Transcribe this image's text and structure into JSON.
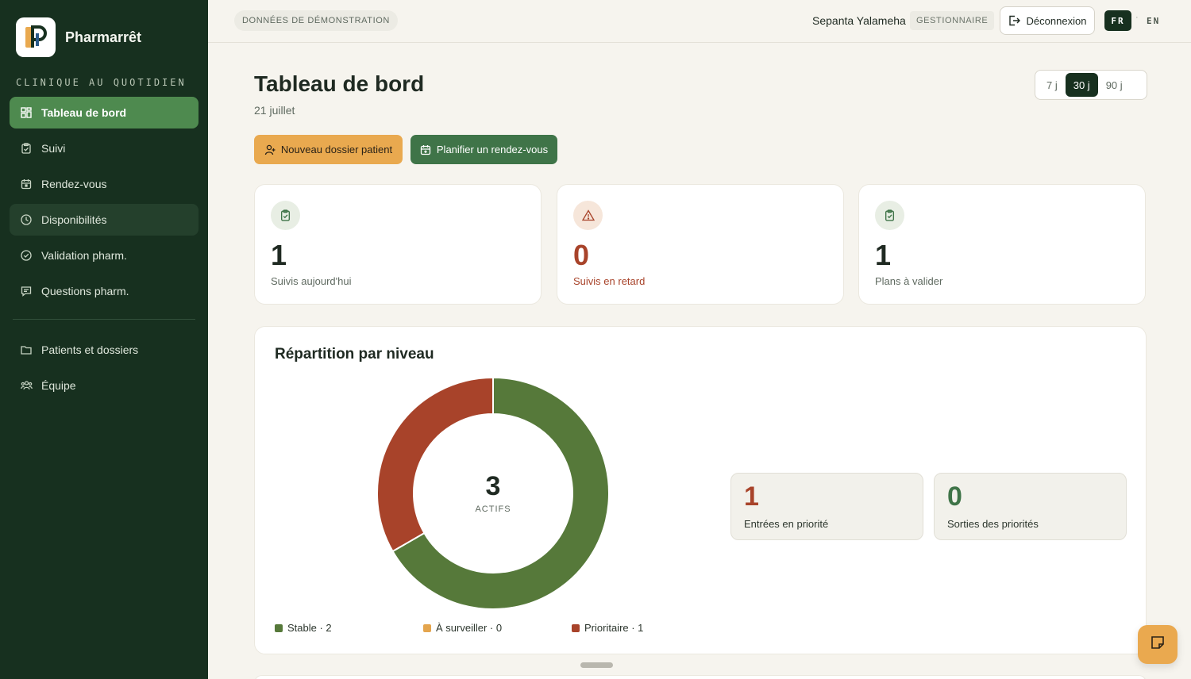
{
  "app": {
    "name": "Pharmarrêt",
    "logo_letter": "P"
  },
  "sidebar": {
    "section_label": "CLINIQUE AU QUOTIDIEN",
    "items": [
      {
        "label": "Tableau de bord",
        "icon": "dashboard-icon",
        "state": "active"
      },
      {
        "label": "Suivi",
        "icon": "clipboard-icon"
      },
      {
        "label": "Rendez-vous",
        "icon": "calendar-icon"
      },
      {
        "label": "Disponibilités",
        "icon": "clock-icon",
        "state": "hover"
      },
      {
        "label": "Validation pharm.",
        "icon": "check-circle-icon"
      },
      {
        "label": "Questions pharm.",
        "icon": "message-icon"
      }
    ],
    "secondary_items": [
      {
        "label": "Patients et dossiers",
        "icon": "folder-icon"
      },
      {
        "label": "Équipe",
        "icon": "team-icon"
      }
    ]
  },
  "topbar": {
    "demo_badge": "DONNÉES DE DÉMONSTRATION",
    "user_name": "Sepanta Yalameha",
    "role": "GESTIONNAIRE",
    "logout_label": "Déconnexion",
    "lang_active": "FR",
    "lang_separator": "·",
    "lang_other": "EN"
  },
  "header": {
    "title": "Tableau de bord",
    "date": "21 juillet",
    "ranges": [
      "7 j",
      "30 j",
      "90 j"
    ],
    "selected_range": "30 j"
  },
  "actions": {
    "new_patient": "Nouveau dossier patient",
    "schedule": "Planifier un rendez-vous"
  },
  "stats": [
    {
      "value": "1",
      "label": "Suivis aujourd'hui",
      "icon": "clipboard-check-icon",
      "tone": "green"
    },
    {
      "value": "0",
      "label": "Suivis en retard",
      "icon": "warning-icon",
      "tone": "orange"
    },
    {
      "value": "1",
      "label": "Plans à valider",
      "icon": "clipboard-check-icon",
      "tone": "green"
    }
  ],
  "distribution": {
    "title": "Répartition par niveau",
    "center_value": "3",
    "center_label": "ACTIFS",
    "legend": [
      "Stable · 2",
      "À surveiller · 0",
      "Prioritaire · 1"
    ],
    "mini_cards": [
      {
        "value": "1",
        "label": "Entrées en priorité",
        "tone": "orange"
      },
      {
        "value": "0",
        "label": "Sorties des priorités",
        "tone": "green"
      }
    ]
  },
  "chart_data": {
    "type": "pie",
    "categories": [
      "Stable",
      "À surveiller",
      "Prioritaire"
    ],
    "values": [
      2,
      0,
      1
    ],
    "colors": [
      "#56793a",
      "#e4a54e",
      "#a8432a"
    ],
    "title": "Répartition par niveau"
  },
  "colors": {
    "sidebar_bg": "#17301f",
    "accent_green": "#3f7448",
    "accent_orange": "#e9a94f",
    "warning_text": "#a8432a"
  }
}
